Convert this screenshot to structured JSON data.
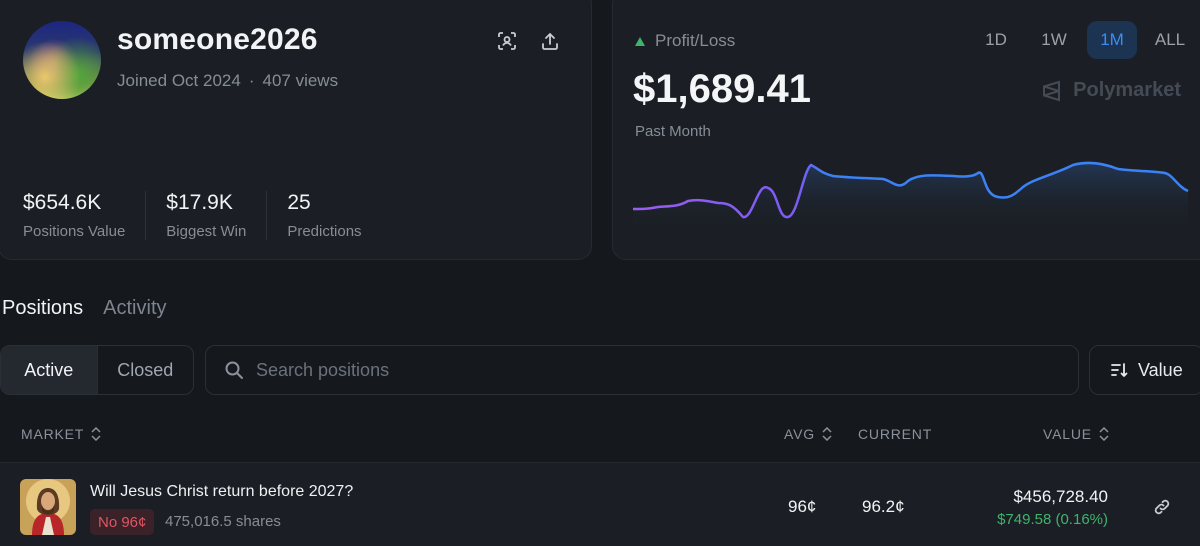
{
  "profile": {
    "username": "someone2026",
    "joined": "Joined Oct 2024",
    "separator": "·",
    "views": "407 views",
    "stats": [
      {
        "value": "$654.6K",
        "label": "Positions Value"
      },
      {
        "value": "$17.9K",
        "label": "Biggest Win"
      },
      {
        "value": "25",
        "label": "Predictions"
      }
    ],
    "icons": [
      "scan-qr-icon",
      "share-upload-icon"
    ]
  },
  "pnl": {
    "label": "Profit/Loss",
    "value": "$1,689.41",
    "period": "Past Month",
    "ranges": [
      "1D",
      "1W",
      "1M",
      "ALL"
    ],
    "active_range": "1M",
    "brand": "Polymarket",
    "colors": {
      "positive": "#3fb36a",
      "line_start": "#8b5cf6",
      "line_end": "#3b82f6"
    }
  },
  "tabs": [
    {
      "label": "Positions",
      "active": true
    },
    {
      "label": "Activity",
      "active": false
    }
  ],
  "filters": {
    "segments": [
      {
        "label": "Active",
        "active": true
      },
      {
        "label": "Closed",
        "active": false
      }
    ],
    "search_placeholder": "Search positions",
    "sort_label": "Value"
  },
  "table": {
    "headers": {
      "market": "MARKET",
      "avg": "AVG",
      "current": "CURRENT",
      "value": "VALUE"
    },
    "rows": [
      {
        "title": "Will Jesus Christ return before 2027?",
        "outcome": "No 96¢",
        "shares": "475,016.5 shares",
        "avg": "96¢",
        "current": "96.2¢",
        "value": "$456,728.40",
        "change": "$749.58 (0.16%)"
      }
    ]
  }
}
